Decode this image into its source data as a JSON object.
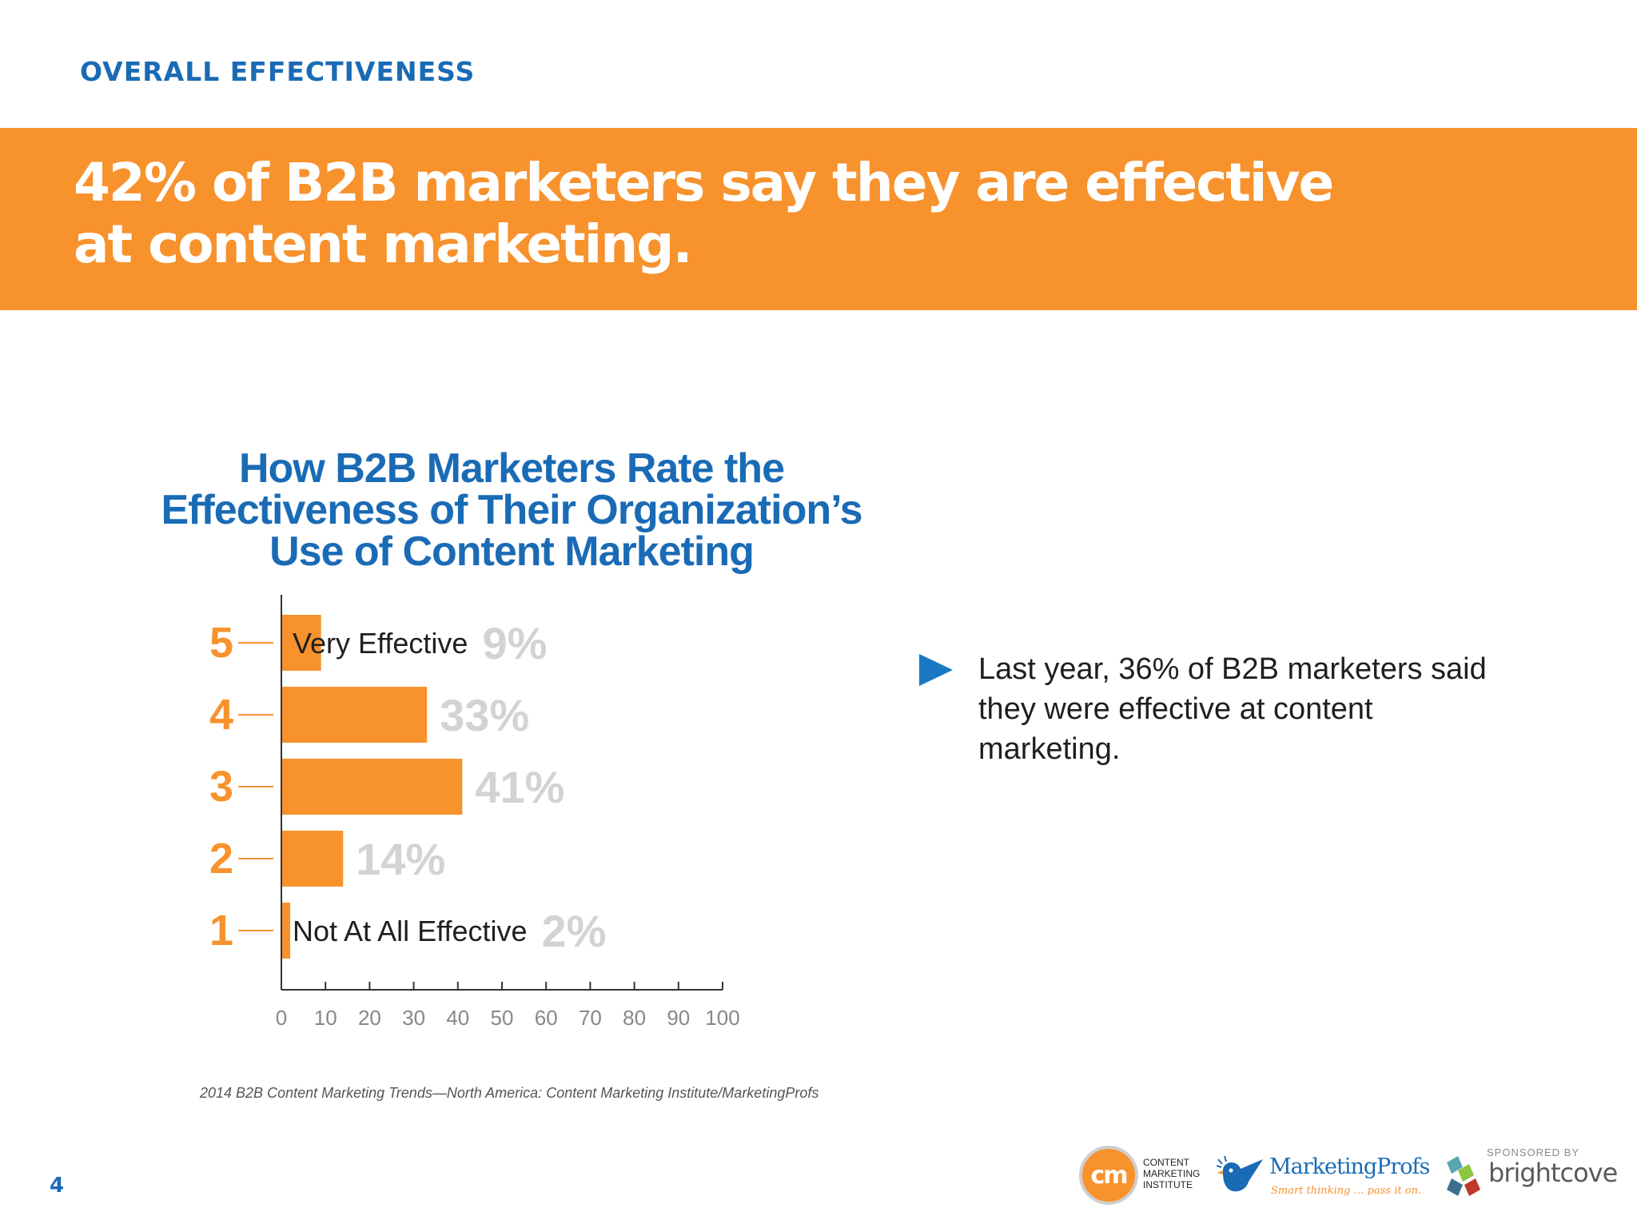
{
  "header": {
    "section_label": "OVERALL EFFECTIVENESS",
    "headline_line1": "42% of B2B marketers say they are effective",
    "headline_line2": "at content marketing."
  },
  "chart_data": {
    "type": "bar",
    "orientation": "horizontal",
    "title_lines": [
      "How B2B Marketers Rate the",
      "Effectiveness of Their Organization’s",
      "Use of Content Marketing"
    ],
    "categories": [
      "5",
      "4",
      "3",
      "2",
      "1"
    ],
    "values": [
      9,
      33,
      41,
      14,
      2
    ],
    "value_labels": [
      "9%",
      "33%",
      "41%",
      "14%",
      "2%"
    ],
    "bar_annotations": [
      "Very Effective",
      "",
      "",
      "",
      "Not At All Effective"
    ],
    "xlim": [
      0,
      100
    ],
    "x_ticks": [
      0,
      10,
      20,
      30,
      40,
      50,
      60,
      70,
      80,
      90,
      100
    ],
    "grid": false,
    "legend": "none",
    "colors": {
      "bar": "#f7922d",
      "category_label": "#f7922d",
      "value_label": "#d3d3d3",
      "axis": "#333333",
      "tick_label": "#888888",
      "annotation": "#1f1f1f"
    }
  },
  "callout": {
    "icon": "triangle-right-icon",
    "text": "Last year, 36% of B2B marketers said they were effective at content marketing."
  },
  "source": "2014 B2B Content Marketing Trends—North America: Content Marketing Institute/MarketingProfs",
  "footer": {
    "page_number": "4",
    "cmi_logo_mark": "cm",
    "cmi_logo_text": "CONTENT\nMARKETING\nINSTITUTE",
    "mp_logo_name": "MarketingProfs",
    "mp_logo_tagline": "Smart thinking … pass it on.",
    "sponsor_label": "SPONSORED BY",
    "bc_logo_name": "brightcove"
  },
  "colors": {
    "brand_blue": "#1a6bb5",
    "brand_orange": "#f7922d"
  }
}
